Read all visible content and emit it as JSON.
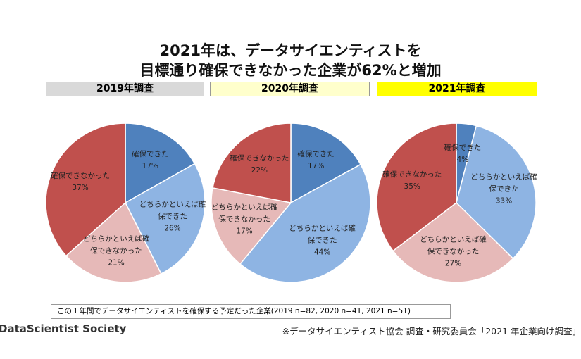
{
  "title_lines": [
    "2021年は、データサイエンティストを",
    "目標通り確保できなかった企業が62%と増加"
  ],
  "note": "この１年間でデータサイエンティストを確保する予定だった企業(2019 n=82, 2020 n=41, 2021 n=51)",
  "logo": "DataScientist Society",
  "source": "※データサイエンティスト協会 調査・研究委員会「2021 年企業向け調査」",
  "chart_data": [
    {
      "type": "pie",
      "title": "2019年調査",
      "header_color": "#d9d9d9",
      "categories": [
        "確保できた",
        "どちらかといえば確保できた",
        "どちらかといえば確保できなかった",
        "確保できなかった"
      ],
      "values": [
        17,
        26,
        21,
        37
      ],
      "value_labels": [
        "17%",
        "26%",
        "21%",
        "37%"
      ],
      "colors": [
        "#4f81bd",
        "#8eb4e3",
        "#e6b9b8",
        "#c0504d"
      ]
    },
    {
      "type": "pie",
      "title": "2020年調査",
      "header_color": "#ffffcc",
      "categories": [
        "確保できた",
        "どちらかといえば確保できた",
        "どちらかといえば確保できなかった",
        "確保できなかった"
      ],
      "values": [
        17,
        44,
        17,
        22
      ],
      "value_labels": [
        "17%",
        "44%",
        "17%",
        "22%"
      ],
      "colors": [
        "#4f81bd",
        "#8eb4e3",
        "#e6b9b8",
        "#c0504d"
      ]
    },
    {
      "type": "pie",
      "title": "2021年調査",
      "header_color": "#ffff00",
      "categories": [
        "確保できた",
        "どちらかといえば確保できた",
        "どちらかといえば確保できなかった",
        "確保できなかった"
      ],
      "values": [
        4,
        33,
        27,
        35
      ],
      "value_labels": [
        "4%",
        "33%",
        "27%",
        "35%"
      ],
      "colors": [
        "#4f81bd",
        "#8eb4e3",
        "#e6b9b8",
        "#c0504d"
      ]
    }
  ]
}
